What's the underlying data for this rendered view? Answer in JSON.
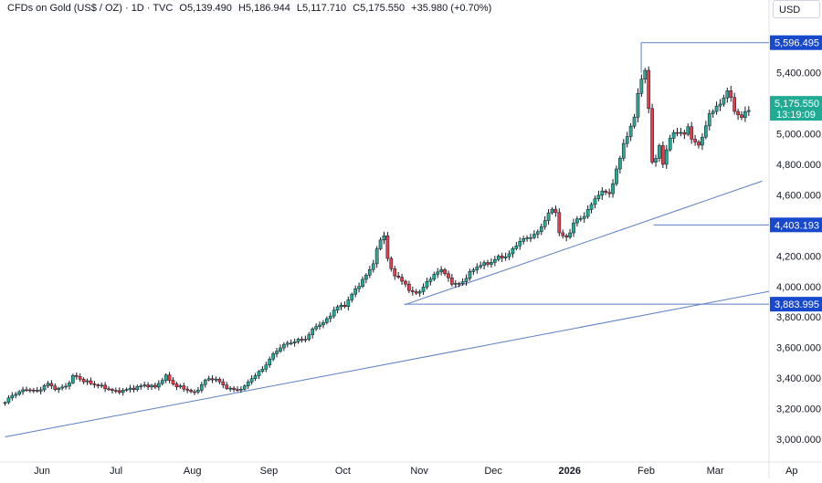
{
  "header": {
    "symbol": "CFDs on Gold (US$ / OZ) · 1D · TVC",
    "open": "O5,139.490",
    "high": "H5,186.944",
    "low": "L5,117.710",
    "close": "C5,175.550",
    "change": "+35.980 (+0.70%)",
    "currency": "USD"
  },
  "colors": {
    "up": "#22ab94",
    "down": "#f23645",
    "wick": "#131722",
    "line": "#5b7ec2",
    "tag": "#1848cc",
    "last": "#22ab94"
  },
  "chart_data": {
    "type": "candlestick",
    "ylim": [
      3000,
      5700
    ],
    "y_ticks": [
      "3,000.000",
      "3,200.000",
      "3,400.000",
      "3,600.000",
      "3,800.000",
      "4,000.000",
      "4,200.000",
      "4,400.000",
      "4,600.000",
      "4,800.000",
      "5,000.000",
      "5,200.000",
      "5,400.000"
    ],
    "y_tick_values": [
      3000,
      3200,
      3400,
      3600,
      3800,
      4000,
      4200,
      4400,
      4600,
      4800,
      5000,
      5200,
      5400
    ],
    "x_ticks": [
      "Jun",
      "Jul",
      "Aug",
      "Sep",
      "Oct",
      "Nov",
      "Dec",
      "2026",
      "Feb",
      "Mar",
      "Ap"
    ],
    "x_tick_days": [
      0,
      30,
      61,
      92,
      122,
      153,
      183,
      214,
      245,
      273,
      304
    ],
    "price_labels": [
      {
        "text": "5,596.495",
        "value": 5596.495,
        "kind": "level"
      },
      {
        "text": "4,403.193",
        "value": 4403.193,
        "kind": "level"
      },
      {
        "text": "3,883.995",
        "value": 3883.995,
        "kind": "level"
      }
    ],
    "last_price": {
      "price": "5,175.550",
      "countdown": "13:19:09",
      "value": 5175.55
    },
    "trendlines": [
      {
        "from": {
          "day": -15,
          "price": 3015
        },
        "to": {
          "day": 302,
          "price": 3990
        }
      },
      {
        "from": {
          "day": 147,
          "price": 3880
        },
        "to": {
          "day": 292,
          "price": 4690
        }
      }
    ],
    "level_lines": [
      {
        "from": {
          "day": 243,
          "price": 5596.495
        },
        "to": {
          "day": 302,
          "price": 5596.495
        }
      },
      {
        "from": {
          "day": 248,
          "price": 4403.193
        },
        "to": {
          "day": 302,
          "price": 4403.193
        }
      },
      {
        "from": {
          "day": 147,
          "price": 3883.995
        },
        "to": {
          "day": 302,
          "price": 3883.995
        }
      }
    ],
    "anchors": [
      {
        "day": -15,
        "price": 3240
      },
      {
        "day": -12,
        "price": 3290
      },
      {
        "day": -6,
        "price": 3330
      },
      {
        "day": -2,
        "price": 3310
      },
      {
        "day": 2,
        "price": 3365
      },
      {
        "day": 6,
        "price": 3325
      },
      {
        "day": 10,
        "price": 3350
      },
      {
        "day": 13,
        "price": 3420
      },
      {
        "day": 17,
        "price": 3380
      },
      {
        "day": 21,
        "price": 3360
      },
      {
        "day": 25,
        "price": 3340
      },
      {
        "day": 30,
        "price": 3310
      },
      {
        "day": 36,
        "price": 3330
      },
      {
        "day": 42,
        "price": 3355
      },
      {
        "day": 46,
        "price": 3340
      },
      {
        "day": 50,
        "price": 3415
      },
      {
        "day": 54,
        "price": 3350
      },
      {
        "day": 58,
        "price": 3330
      },
      {
        "day": 62,
        "price": 3300
      },
      {
        "day": 66,
        "price": 3385
      },
      {
        "day": 70,
        "price": 3400
      },
      {
        "day": 74,
        "price": 3345
      },
      {
        "day": 78,
        "price": 3320
      },
      {
        "day": 82,
        "price": 3340
      },
      {
        "day": 85,
        "price": 3400
      },
      {
        "day": 89,
        "price": 3450
      },
      {
        "day": 93,
        "price": 3540
      },
      {
        "day": 97,
        "price": 3610
      },
      {
        "day": 102,
        "price": 3640
      },
      {
        "day": 107,
        "price": 3660
      },
      {
        "day": 111,
        "price": 3740
      },
      {
        "day": 115,
        "price": 3770
      },
      {
        "day": 119,
        "price": 3860
      },
      {
        "day": 123,
        "price": 3880
      },
      {
        "day": 127,
        "price": 3980
      },
      {
        "day": 131,
        "price": 4060
      },
      {
        "day": 134,
        "price": 4140
      },
      {
        "day": 137,
        "price": 4300
      },
      {
        "day": 139,
        "price": 4340
      },
      {
        "day": 140,
        "price": 4200
      },
      {
        "day": 142,
        "price": 4080
      },
      {
        "day": 145,
        "price": 4060
      },
      {
        "day": 148,
        "price": 3990
      },
      {
        "day": 151,
        "price": 3960
      },
      {
        "day": 153,
        "price": 3950
      },
      {
        "day": 155,
        "price": 4020
      },
      {
        "day": 158,
        "price": 4050
      },
      {
        "day": 161,
        "price": 4120
      },
      {
        "day": 164,
        "price": 4070
      },
      {
        "day": 167,
        "price": 4010
      },
      {
        "day": 170,
        "price": 4020
      },
      {
        "day": 173,
        "price": 4080
      },
      {
        "day": 177,
        "price": 4140
      },
      {
        "day": 181,
        "price": 4150
      },
      {
        "day": 185,
        "price": 4190
      },
      {
        "day": 189,
        "price": 4200
      },
      {
        "day": 193,
        "price": 4290
      },
      {
        "day": 197,
        "price": 4320
      },
      {
        "day": 201,
        "price": 4350
      },
      {
        "day": 205,
        "price": 4470
      },
      {
        "day": 208,
        "price": 4520
      },
      {
        "day": 210,
        "price": 4330
      },
      {
        "day": 213,
        "price": 4320
      },
      {
        "day": 216,
        "price": 4430
      },
      {
        "day": 219,
        "price": 4450
      },
      {
        "day": 222,
        "price": 4510
      },
      {
        "day": 225,
        "price": 4600
      },
      {
        "day": 228,
        "price": 4620
      },
      {
        "day": 230,
        "price": 4610
      },
      {
        "day": 232,
        "price": 4700
      },
      {
        "day": 234,
        "price": 4820
      },
      {
        "day": 236,
        "price": 4950
      },
      {
        "day": 238,
        "price": 5000
      },
      {
        "day": 240,
        "price": 5100
      },
      {
        "day": 242,
        "price": 5300
      },
      {
        "day": 244,
        "price": 5400
      },
      {
        "day": 245,
        "price": 5410
      },
      {
        "day": 246,
        "price": 5180
      },
      {
        "day": 247,
        "price": 4900
      },
      {
        "day": 248,
        "price": 4700
      },
      {
        "day": 249,
        "price": 4850
      },
      {
        "day": 251,
        "price": 4950
      },
      {
        "day": 252,
        "price": 4780
      },
      {
        "day": 254,
        "price": 4950
      },
      {
        "day": 257,
        "price": 5030
      },
      {
        "day": 260,
        "price": 4980
      },
      {
        "day": 262,
        "price": 5050
      },
      {
        "day": 264,
        "price": 4940
      },
      {
        "day": 266,
        "price": 4920
      },
      {
        "day": 268,
        "price": 4990
      },
      {
        "day": 270,
        "price": 5100
      },
      {
        "day": 273,
        "price": 5180
      },
      {
        "day": 276,
        "price": 5200
      },
      {
        "day": 278,
        "price": 5300
      },
      {
        "day": 279,
        "price": 5260
      },
      {
        "day": 281,
        "price": 5130
      },
      {
        "day": 283,
        "price": 5110
      },
      {
        "day": 285,
        "price": 5140
      },
      {
        "day": 287,
        "price": 5150
      },
      {
        "day": 288,
        "price": 5175
      }
    ]
  }
}
